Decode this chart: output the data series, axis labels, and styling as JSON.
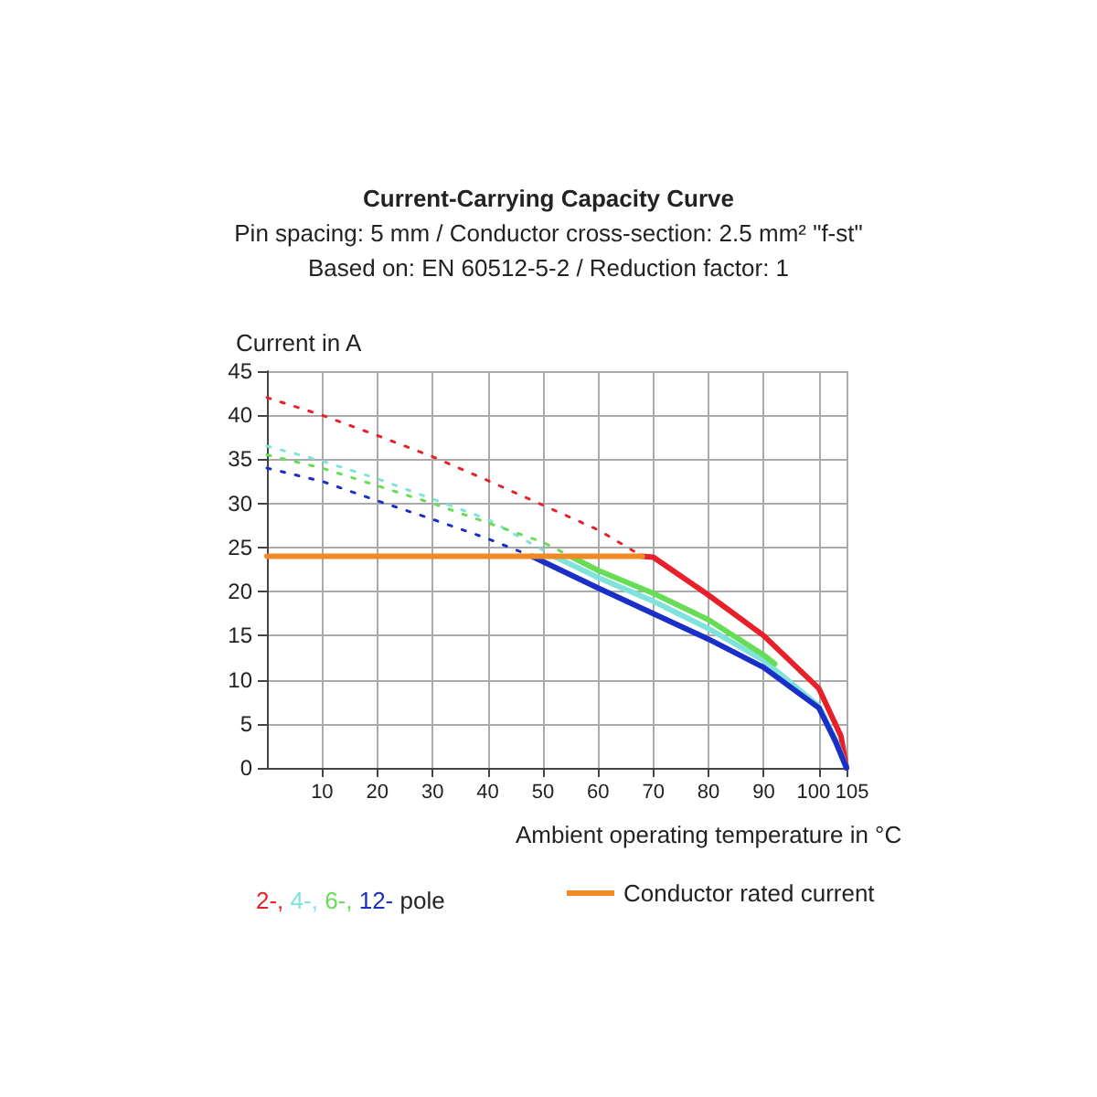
{
  "chart_data": {
    "type": "line",
    "title": "Current-Carrying Capacity Curve",
    "subtitle": "Pin spacing: 5 mm / Conductor cross-section: 2.5 mm² \"f-st\"\nBased on: EN 60512-5-2 / Reduction factor: 1",
    "xlabel": "Ambient operating temperature in °C",
    "ylabel": "Current in A",
    "legend_title": "pole",
    "xlim": [
      0,
      105
    ],
    "xticks": [
      10,
      20,
      30,
      40,
      50,
      60,
      70,
      80,
      90,
      100,
      105
    ],
    "ylim": [
      0,
      45
    ],
    "yticks": [
      0,
      5,
      10,
      15,
      20,
      25,
      30,
      35,
      40,
      45
    ],
    "grid": true,
    "legend": "bottom",
    "marker": "none",
    "series": [
      {
        "name": "2-,",
        "color": "#e8202a",
        "line_style": "solid",
        "x": [
          68,
          70,
          80,
          90,
          100,
          104,
          105
        ],
        "values": [
          24,
          23.9,
          19.6,
          15,
          9,
          3.6,
          0
        ]
      },
      {
        "name": "4-,",
        "color": "#7fe3dc",
        "line_style": "solid",
        "x": [
          52,
          60,
          70,
          80,
          90,
          100,
          103,
          105
        ],
        "values": [
          24,
          21.6,
          18.9,
          15.8,
          12.2,
          7,
          3.2,
          0
        ]
      },
      {
        "name": "6-,",
        "color": "#66dd55",
        "line_style": "solid",
        "x": [
          55,
          60,
          70,
          80,
          90,
          92
        ],
        "values": [
          24,
          22.4,
          19.8,
          16.8,
          12.8,
          11.8
        ]
      },
      {
        "name": "12-",
        "color": "#1a2fc8",
        "line_style": "solid",
        "x": [
          48,
          60,
          70,
          80,
          90,
          100,
          103,
          105
        ],
        "values": [
          24,
          20.4,
          17.5,
          14.6,
          11.4,
          6.8,
          3,
          0
        ]
      },
      {
        "color": "#e8202a",
        "line_style": "dotted",
        "x": [
          0,
          10,
          20,
          30,
          40,
          50,
          60,
          68
        ],
        "values": [
          42,
          40,
          37.7,
          35.3,
          32.6,
          29.8,
          27,
          24
        ]
      },
      {
        "color": "#7fe3dc",
        "line_style": "dotted",
        "x": [
          0,
          10,
          20,
          30,
          40,
          52
        ],
        "values": [
          36.5,
          34.8,
          32.8,
          30.5,
          28.2,
          24
        ]
      },
      {
        "color": "#66dd55",
        "line_style": "dotted",
        "x": [
          0,
          10,
          20,
          30,
          40,
          50,
          55
        ],
        "values": [
          35.5,
          34,
          32,
          30,
          27.8,
          25.6,
          24
        ]
      },
      {
        "color": "#1a2fc8",
        "line_style": "dotted",
        "x": [
          0,
          10,
          20,
          30,
          40,
          48
        ],
        "values": [
          34,
          32.5,
          30.3,
          28.2,
          26,
          24
        ]
      },
      {
        "name": "Conductor rated current",
        "color": "#f08a24",
        "line_style": "solid",
        "x": [
          0,
          68
        ],
        "values": [
          24,
          24
        ]
      }
    ]
  }
}
